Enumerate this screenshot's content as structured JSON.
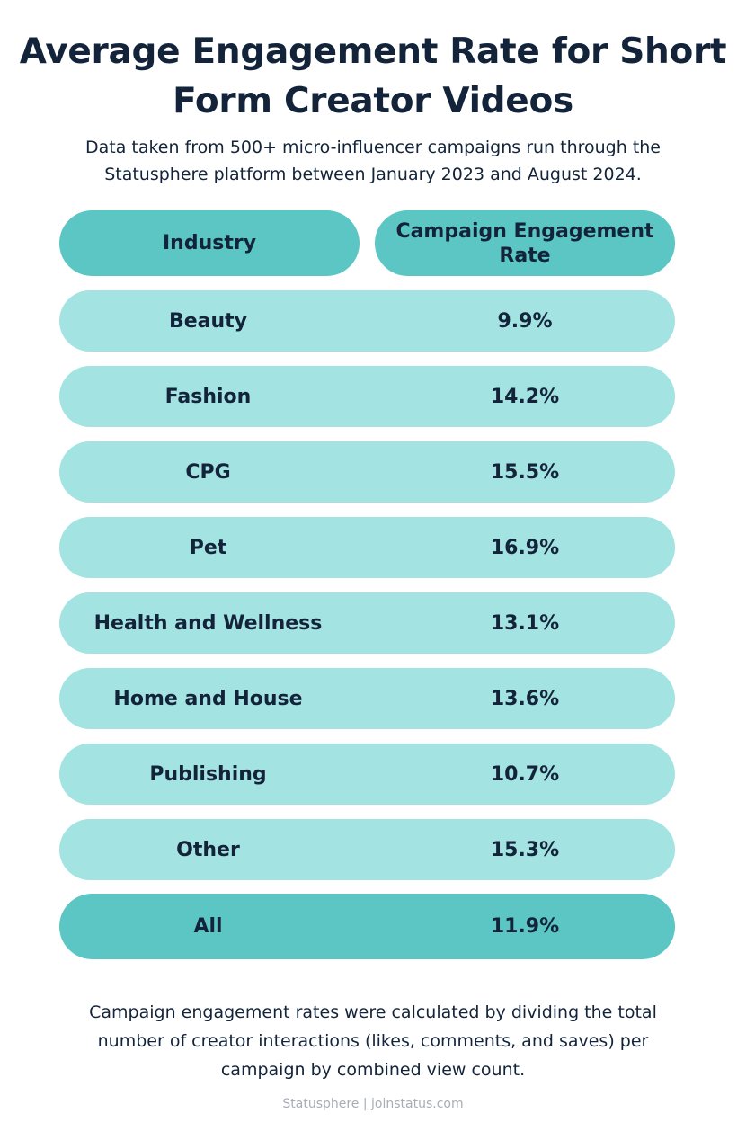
{
  "title": "Average Engagement Rate for Short Form Creator Videos",
  "subtitle": "Data taken from 500+ micro-influencer campaigns run through the Statusphere platform between January 2023 and August 2024.",
  "footnote": "Campaign engagement rates were calculated by dividing the total number of creator interactions (likes, comments, and saves) per campaign by combined view count.",
  "credit": "Statusphere | joinstatus.com",
  "colors": {
    "header_fill": "#5bc6c3",
    "row_fill": "#a3e3e2",
    "text": "#13243a"
  },
  "chart_data": {
    "type": "table",
    "title": "Average Engagement Rate for Short Form Creator Videos",
    "columns": [
      "Industry",
      "Campaign Engagement Rate"
    ],
    "rows": [
      [
        "Beauty",
        "9.9%"
      ],
      [
        "Fashion",
        "14.2%"
      ],
      [
        "CPG",
        "15.5%"
      ],
      [
        "Pet",
        "16.9%"
      ],
      [
        "Health and Wellness",
        "13.1%"
      ],
      [
        "Home and House",
        "13.6%"
      ],
      [
        "Publishing",
        "10.7%"
      ],
      [
        "Other",
        "15.3%"
      ]
    ],
    "total": [
      "All",
      "11.9%"
    ]
  }
}
